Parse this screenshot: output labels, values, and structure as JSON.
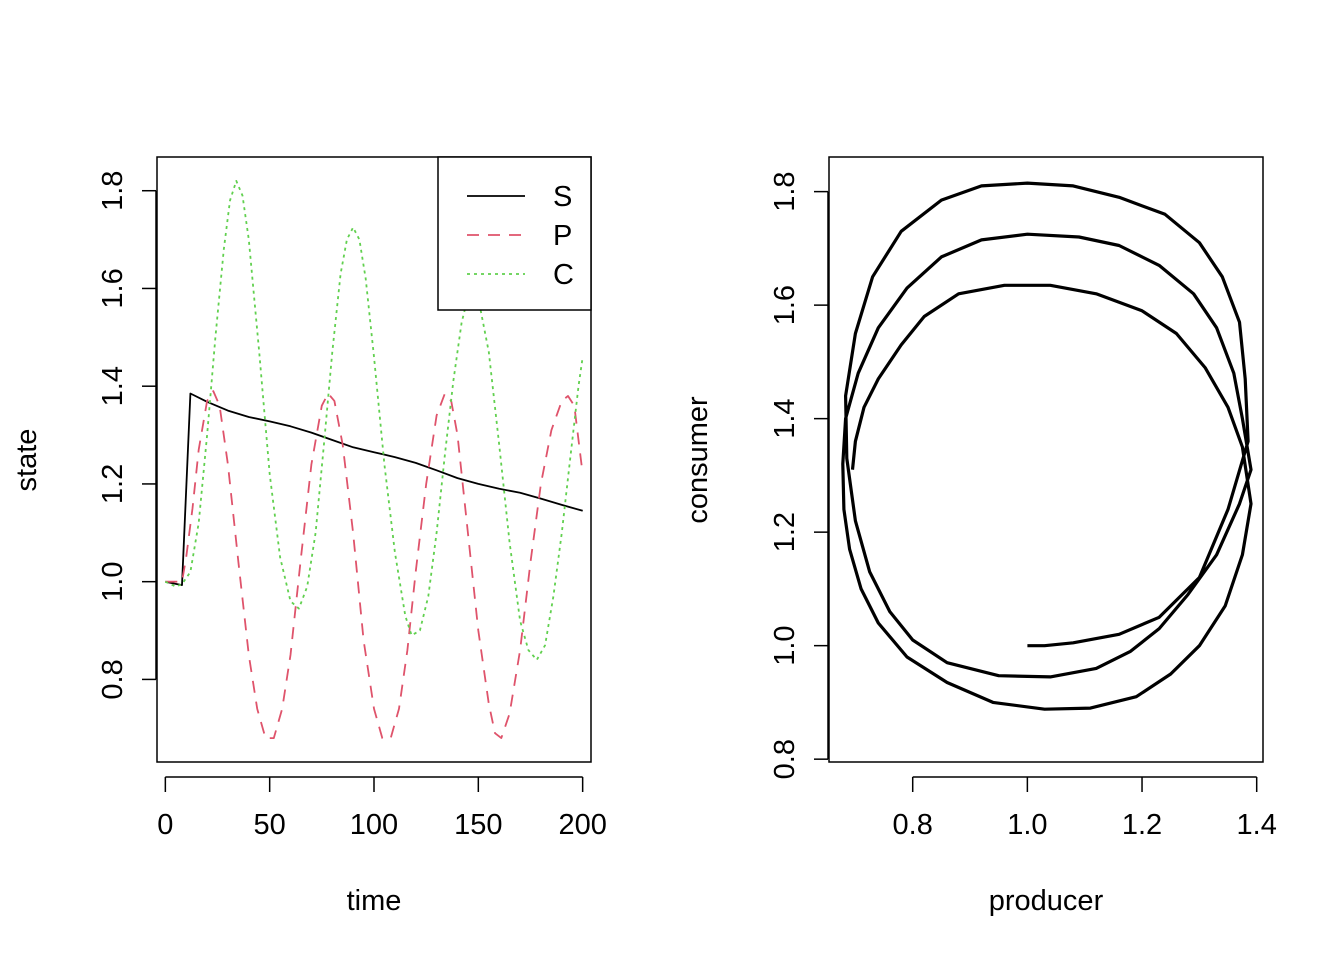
{
  "chart_data": [
    {
      "type": "line",
      "title": "",
      "xlabel": "time",
      "ylabel": "state",
      "xlim": [
        -4,
        204
      ],
      "ylim": [
        0.631,
        1.869
      ],
      "xticks": [
        0,
        50,
        100,
        150,
        200
      ],
      "yticks": [
        0.8,
        1.0,
        1.2,
        1.4,
        1.6,
        1.8
      ],
      "legend": {
        "position": "top-right"
      },
      "series": [
        {
          "name": "S",
          "color": "#000000",
          "dash": "solid",
          "x": [
            0,
            8,
            12,
            20,
            30,
            40,
            50,
            60,
            70,
            80,
            90,
            100,
            110,
            120,
            130,
            140,
            150,
            160,
            170,
            180,
            190,
            200
          ],
          "y": [
            1.0,
            0.993,
            1.385,
            1.368,
            1.35,
            1.337,
            1.328,
            1.318,
            1.305,
            1.29,
            1.275,
            1.265,
            1.255,
            1.243,
            1.228,
            1.212,
            1.2,
            1.19,
            1.182,
            1.17,
            1.157,
            1.145
          ]
        },
        {
          "name": "P",
          "color": "#DF536B",
          "dash": "dashed",
          "x": [
            0,
            5,
            8,
            10,
            13,
            16,
            20,
            23,
            26,
            30,
            35,
            40,
            44,
            48,
            52,
            56,
            60,
            65,
            70,
            75,
            78,
            81,
            85,
            90,
            95,
            100,
            104,
            108,
            112,
            116,
            120,
            125,
            130,
            134,
            137,
            140,
            145,
            150,
            155,
            158,
            161,
            165,
            170,
            175,
            180,
            185,
            190,
            193,
            196,
            200
          ],
          "y": [
            1.0,
            1.0,
            1.0,
            1.05,
            1.15,
            1.27,
            1.37,
            1.39,
            1.36,
            1.24,
            1.04,
            0.85,
            0.74,
            0.68,
            0.68,
            0.74,
            0.85,
            1.05,
            1.24,
            1.36,
            1.385,
            1.37,
            1.28,
            1.1,
            0.88,
            0.74,
            0.68,
            0.68,
            0.74,
            0.86,
            1.02,
            1.2,
            1.34,
            1.385,
            1.37,
            1.3,
            1.1,
            0.9,
            0.75,
            0.69,
            0.68,
            0.73,
            0.86,
            1.04,
            1.2,
            1.31,
            1.37,
            1.38,
            1.36,
            1.22
          ]
        },
        {
          "name": "C",
          "color": "#61D04F",
          "dash": "dotted",
          "x": [
            0,
            5,
            8,
            12,
            16,
            20,
            24,
            28,
            31,
            34,
            37,
            40,
            45,
            50,
            55,
            60,
            64,
            68,
            72,
            76,
            80,
            84,
            87,
            90,
            93,
            96,
            100,
            105,
            110,
            115,
            118,
            122,
            126,
            130,
            134,
            138,
            142,
            146,
            150,
            155,
            160,
            165,
            170,
            174,
            178,
            182,
            186,
            190,
            194,
            198,
            200
          ],
          "y": [
            1.0,
            0.99,
            0.995,
            1.02,
            1.12,
            1.3,
            1.5,
            1.68,
            1.78,
            1.82,
            1.79,
            1.7,
            1.47,
            1.22,
            1.05,
            0.96,
            0.945,
            0.99,
            1.1,
            1.28,
            1.47,
            1.63,
            1.7,
            1.725,
            1.7,
            1.62,
            1.46,
            1.24,
            1.06,
            0.93,
            0.89,
            0.9,
            0.97,
            1.1,
            1.26,
            1.41,
            1.53,
            1.6,
            1.58,
            1.47,
            1.28,
            1.08,
            0.92,
            0.86,
            0.84,
            0.87,
            0.97,
            1.1,
            1.25,
            1.4,
            1.46
          ]
        }
      ]
    },
    {
      "type": "line",
      "title": "",
      "xlabel": "producer",
      "ylabel": "consumer",
      "xlim": [
        0.654,
        1.411
      ],
      "ylim": [
        0.795,
        1.861
      ],
      "xticks": [
        0.8,
        1.0,
        1.2,
        1.4
      ],
      "yticks": [
        0.8,
        1.0,
        1.2,
        1.4,
        1.6,
        1.8
      ],
      "series": [
        {
          "color": "#000000",
          "dash": "solid",
          "x": [
            1.0,
            1.03,
            1.08,
            1.16,
            1.23,
            1.3,
            1.35,
            1.385,
            1.38,
            1.37,
            1.34,
            1.3,
            1.24,
            1.16,
            1.08,
            1.0,
            0.92,
            0.85,
            0.78,
            0.73,
            0.7,
            0.683,
            0.685,
            0.7,
            0.725,
            0.76,
            0.8,
            0.86,
            0.95,
            1.04,
            1.12,
            1.18,
            1.23,
            1.28,
            1.33,
            1.37,
            1.39,
            1.375,
            1.36,
            1.33,
            1.29,
            1.23,
            1.16,
            1.09,
            1.0,
            0.92,
            0.85,
            0.79,
            0.74,
            0.705,
            0.683,
            0.678,
            0.68,
            0.69,
            0.71,
            0.74,
            0.79,
            0.86,
            0.94,
            1.03,
            1.11,
            1.19,
            1.25,
            1.3,
            1.345,
            1.375,
            1.39,
            1.375,
            1.35,
            1.31,
            1.26,
            1.2,
            1.12,
            1.04,
            0.96,
            0.88,
            0.82,
            0.78,
            0.74,
            0.715,
            0.7,
            0.695
          ],
          "y": [
            1.0,
            1.0,
            1.005,
            1.02,
            1.05,
            1.12,
            1.24,
            1.36,
            1.47,
            1.57,
            1.65,
            1.71,
            1.76,
            1.79,
            1.81,
            1.815,
            1.81,
            1.785,
            1.73,
            1.65,
            1.55,
            1.44,
            1.33,
            1.22,
            1.13,
            1.06,
            1.01,
            0.97,
            0.947,
            0.945,
            0.96,
            0.99,
            1.03,
            1.09,
            1.16,
            1.25,
            1.31,
            1.4,
            1.48,
            1.56,
            1.62,
            1.67,
            1.705,
            1.72,
            1.725,
            1.715,
            1.685,
            1.63,
            1.56,
            1.48,
            1.4,
            1.32,
            1.24,
            1.17,
            1.1,
            1.04,
            0.98,
            0.935,
            0.9,
            0.888,
            0.89,
            0.91,
            0.95,
            1.0,
            1.07,
            1.16,
            1.25,
            1.35,
            1.42,
            1.49,
            1.55,
            1.59,
            1.62,
            1.635,
            1.635,
            1.62,
            1.58,
            1.53,
            1.47,
            1.42,
            1.36,
            1.31
          ]
        }
      ]
    }
  ]
}
